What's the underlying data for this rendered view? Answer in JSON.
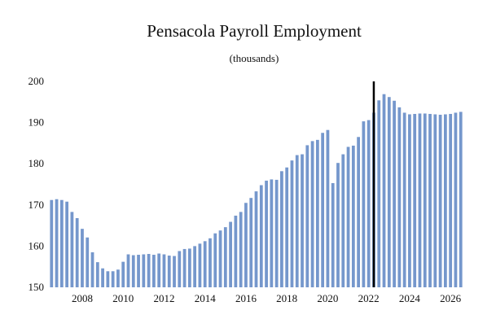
{
  "chart_data": {
    "type": "bar",
    "title": "Pensacola Payroll Employment",
    "subtitle": "(thousands)",
    "xlabel": "",
    "ylabel": "",
    "ylim": [
      150,
      200
    ],
    "y_ticks": [
      150,
      160,
      170,
      180,
      190,
      200
    ],
    "x_tick_labels": [
      "2008",
      "2010",
      "2012",
      "2014",
      "2016",
      "2018",
      "2020",
      "2022",
      "2024",
      "2026"
    ],
    "x_range": [
      2006.25,
      2026.75
    ],
    "grid": false,
    "bar_color": "#7597cc",
    "marker_line": {
      "x": 2022.25,
      "color": "#000000"
    },
    "x": [
      2006.5,
      2006.75,
      2007.0,
      2007.25,
      2007.5,
      2007.75,
      2008.0,
      2008.25,
      2008.5,
      2008.75,
      2009.0,
      2009.25,
      2009.5,
      2009.75,
      2010.0,
      2010.25,
      2010.5,
      2010.75,
      2011.0,
      2011.25,
      2011.5,
      2011.75,
      2012.0,
      2012.25,
      2012.5,
      2012.75,
      2013.0,
      2013.25,
      2013.5,
      2013.75,
      2014.0,
      2014.25,
      2014.5,
      2014.75,
      2015.0,
      2015.25,
      2015.5,
      2015.75,
      2016.0,
      2016.25,
      2016.5,
      2016.75,
      2017.0,
      2017.25,
      2017.5,
      2017.75,
      2018.0,
      2018.25,
      2018.5,
      2018.75,
      2019.0,
      2019.25,
      2019.5,
      2019.75,
      2020.0,
      2020.25,
      2020.5,
      2020.75,
      2021.0,
      2021.25,
      2021.5,
      2021.75,
      2022.0,
      2022.25,
      2022.5,
      2022.75,
      2023.0,
      2023.25,
      2023.5,
      2023.75,
      2024.0,
      2024.25,
      2024.5,
      2024.75,
      2025.0,
      2025.25,
      2025.5,
      2025.75,
      2026.0,
      2026.25,
      2026.5
    ],
    "values": [
      171.2,
      171.4,
      171.2,
      170.8,
      168.3,
      166.8,
      164.2,
      162.1,
      158.5,
      156.1,
      154.6,
      153.9,
      153.9,
      154.3,
      156.2,
      158.0,
      157.8,
      157.9,
      158.0,
      158.1,
      157.9,
      158.2,
      158.0,
      157.7,
      157.6,
      158.8,
      159.3,
      159.4,
      160.0,
      160.6,
      161.2,
      161.9,
      163.1,
      163.8,
      164.6,
      165.9,
      167.4,
      168.3,
      170.5,
      171.7,
      173.3,
      174.8,
      175.9,
      176.2,
      176.1,
      178.2,
      179.1,
      180.8,
      182.1,
      182.3,
      184.5,
      185.5,
      185.8,
      187.5,
      188.2,
      175.3,
      180.2,
      182.3,
      184.1,
      184.4,
      186.5,
      190.3,
      190.6,
      192.4,
      195.4,
      196.9,
      196.2,
      195.3,
      193.7,
      192.4,
      192.0,
      192.1,
      192.2,
      192.2,
      192.1,
      192.0,
      191.9,
      192.0,
      192.1,
      192.4,
      192.6
    ]
  }
}
